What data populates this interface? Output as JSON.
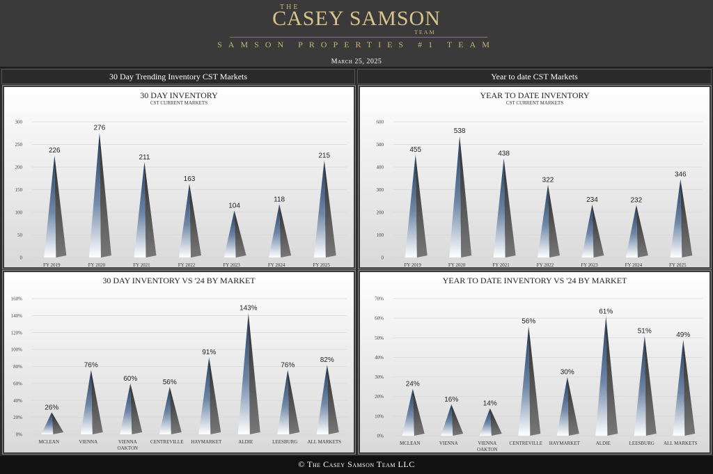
{
  "header": {
    "logo_the": "THE",
    "logo_main": "CASEY SAMSON",
    "logo_team": "TEAM",
    "tagline": "SAMSON PROPERTIES #1 TEAM",
    "date": "March 25, 2025"
  },
  "sections": {
    "left": "30 Day Trending Inventory CST Markets",
    "right": "Year to date CST Markets"
  },
  "footer": {
    "text": "© The Casey Samson Team LLC"
  },
  "colors": {
    "bar_dark": "#1f3a5f",
    "bar_light": "#ffffff",
    "shadow": "#777777"
  },
  "chart_data": [
    {
      "id": "c1",
      "type": "bar",
      "title": "30 DAY INVENTORY",
      "subtitle": "CST CURRENT MARKETS",
      "categories": [
        "FY 2019",
        "FY 2020",
        "FY 2021",
        "FY 2022",
        "FY 2023",
        "FY 2024",
        "FY 2025"
      ],
      "values": [
        226,
        276,
        211,
        163,
        104,
        118,
        215
      ],
      "value_labels": [
        "226",
        "276",
        "211",
        "163",
        "104",
        "118",
        "215"
      ],
      "ylim": [
        0,
        300
      ],
      "yticks": [
        0,
        50,
        100,
        150,
        200,
        250,
        300
      ],
      "ytick_labels": [
        "0",
        "50",
        "100",
        "150",
        "200",
        "250",
        "300"
      ]
    },
    {
      "id": "c2",
      "type": "bar",
      "title": "YEAR TO DATE INVENTORY",
      "subtitle": "CST CURRENT MARKETS",
      "categories": [
        "FY 2019",
        "FY 2020",
        "FY 2021",
        "FY 2022",
        "FY 2023",
        "FY 2024",
        "FY 2025"
      ],
      "values": [
        455,
        538,
        438,
        322,
        234,
        232,
        346
      ],
      "value_labels": [
        "455",
        "538",
        "438",
        "322",
        "234",
        "232",
        "346"
      ],
      "ylim": [
        0,
        600
      ],
      "yticks": [
        0,
        100,
        200,
        300,
        400,
        500,
        600
      ],
      "ytick_labels": [
        "0",
        "100",
        "200",
        "300",
        "400",
        "500",
        "600"
      ]
    },
    {
      "id": "c3",
      "type": "bar",
      "title": "30 DAY INVENTORY VS '24 BY MARKET",
      "subtitle": "",
      "categories": [
        "MCLEAN",
        "VIENNA",
        "VIENNA OAKTON",
        "CENTREVILLE",
        "HAYMARKET",
        "ALDIE",
        "LEESBURG",
        "ALL MARKETS"
      ],
      "values": [
        26,
        76,
        60,
        56,
        91,
        143,
        76,
        82
      ],
      "value_labels": [
        "26%",
        "76%",
        "60%",
        "56%",
        "91%",
        "143%",
        "76%",
        "82%"
      ],
      "ylim": [
        0,
        160
      ],
      "yticks": [
        0,
        20,
        40,
        60,
        80,
        100,
        120,
        140,
        160
      ],
      "ytick_labels": [
        "0%",
        "20%",
        "40%",
        "60%",
        "80%",
        "100%",
        "120%",
        "140%",
        "160%"
      ]
    },
    {
      "id": "c4",
      "type": "bar",
      "title": "YEAR TO DATE INVENTORY VS '24 BY MARKET",
      "subtitle": "",
      "categories": [
        "MCLEAN",
        "VIENNA",
        "VIENNA OAKTON",
        "CENTREVILLE",
        "HAYMARKET",
        "ALDIE",
        "LEESBURG",
        "ALL MARKETS"
      ],
      "values": [
        24,
        16,
        14,
        56,
        30,
        61,
        51,
        49
      ],
      "value_labels": [
        "24%",
        "16%",
        "14%",
        "56%",
        "30%",
        "61%",
        "51%",
        "49%"
      ],
      "ylim": [
        0,
        70
      ],
      "yticks": [
        0,
        10,
        20,
        30,
        40,
        50,
        60,
        70
      ],
      "ytick_labels": [
        "0%",
        "10%",
        "20%",
        "30%",
        "40%",
        "50%",
        "60%",
        "70%"
      ]
    }
  ]
}
